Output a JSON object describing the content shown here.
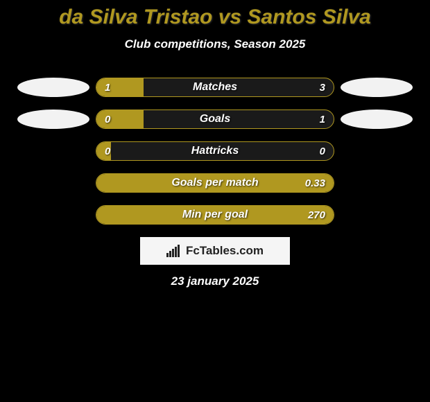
{
  "title": "da Silva Tristao vs Santos Silva",
  "subtitle": "Club competitions, Season 2025",
  "date": "23 january 2025",
  "brand": "FcTables.com",
  "colors": {
    "accent": "#b09820",
    "background": "#000000",
    "bar_track": "#1a1a1a",
    "ellipse": "#f2f2f2",
    "brand_bg": "#f5f5f5",
    "text": "#ffffff"
  },
  "rows": [
    {
      "label": "Matches",
      "left": "1",
      "right": "3",
      "fill_side": "left",
      "fill_pct": 20,
      "show_left_ellipse": true,
      "show_right_ellipse": true
    },
    {
      "label": "Goals",
      "left": "0",
      "right": "1",
      "fill_side": "left",
      "fill_pct": 20,
      "show_left_ellipse": true,
      "show_right_ellipse": true
    },
    {
      "label": "Hattricks",
      "left": "0",
      "right": "0",
      "fill_side": "left",
      "fill_pct": 6,
      "show_left_ellipse": false,
      "show_right_ellipse": false
    },
    {
      "label": "Goals per match",
      "left": "",
      "right": "0.33",
      "fill_side": "right",
      "fill_pct": 100,
      "show_left_ellipse": false,
      "show_right_ellipse": false
    },
    {
      "label": "Min per goal",
      "left": "",
      "right": "270",
      "fill_side": "right",
      "fill_pct": 100,
      "show_left_ellipse": false,
      "show_right_ellipse": false
    }
  ]
}
